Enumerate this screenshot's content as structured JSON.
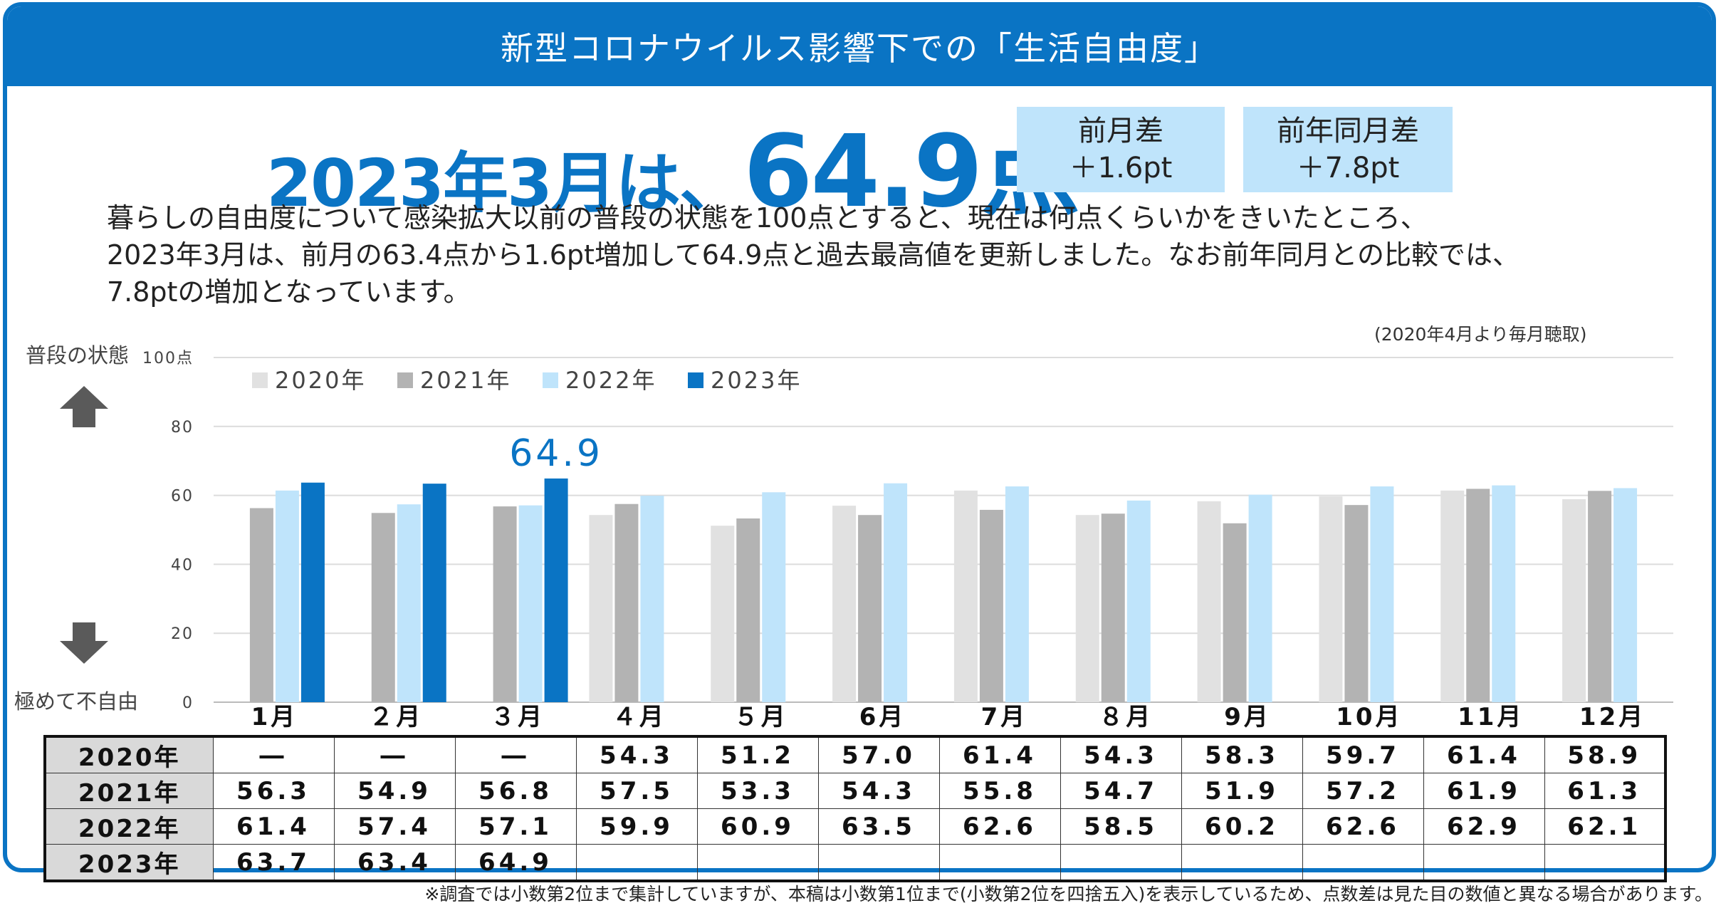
{
  "title": "新型コロナウイルス影響下での「生活自由度」",
  "headline": {
    "prefix": "2023年3月は、",
    "score": "64.9点"
  },
  "diff_month": {
    "label": "前月差",
    "value": "＋1.6pt"
  },
  "diff_year": {
    "label": "前年同月差",
    "value": "＋7.8pt"
  },
  "description": [
    "暮らしの自由度について感染拡大以前の普段の状態を100点とすると、現在は何点くらいかをきいたところ、",
    "2023年3月は、前月の63.4点から1.6pt増加して64.9点と過去最高値を更新しました。なお前年同月との比較では、",
    "7.8ptの増加となっています。"
  ],
  "note_top": "(2020年4月より毎月聴取)",
  "side_top": "普段の状態",
  "side_bottom": "極めて不自由",
  "arrow_up_icon": "arrow-up-icon",
  "arrow_down_icon": "arrow-down-icon",
  "footnote": "※調査では小数第2位まで集計していますが、本稿は小数第1位まで(小数第2位を四捨五入)を表示しているため、点数差は見た目の数値と異なる場合があります。",
  "table_rows": [
    {
      "year": "2020年",
      "cells": [
        "―",
        "―",
        "―",
        "54.3",
        "51.2",
        "57.0",
        "61.4",
        "54.3",
        "58.3",
        "59.7",
        "61.4",
        "58.9"
      ]
    },
    {
      "year": "2021年",
      "cells": [
        "56.3",
        "54.9",
        "56.8",
        "57.5",
        "53.3",
        "54.3",
        "55.8",
        "54.7",
        "51.9",
        "57.2",
        "61.9",
        "61.3"
      ]
    },
    {
      "year": "2022年",
      "cells": [
        "61.4",
        "57.4",
        "57.1",
        "59.9",
        "60.9",
        "63.5",
        "62.6",
        "58.5",
        "60.2",
        "62.6",
        "62.9",
        "62.1"
      ]
    },
    {
      "year": "2023年",
      "cells": [
        "63.7",
        "63.4",
        "64.9",
        "",
        "",
        "",
        "",
        "",
        "",
        "",
        "",
        ""
      ]
    }
  ],
  "chart_data": {
    "type": "bar",
    "categories": [
      "1月",
      "２月",
      "３月",
      "４月",
      "５月",
      "6月",
      "7月",
      "８月",
      "9月",
      "10月",
      "11月",
      "12月"
    ],
    "series": [
      {
        "name": "2020年",
        "color": "#e1e1e1",
        "values": [
          null,
          null,
          null,
          54.3,
          51.2,
          57.0,
          61.4,
          54.3,
          58.3,
          59.7,
          61.4,
          58.9
        ]
      },
      {
        "name": "2021年",
        "color": "#b3b3b3",
        "values": [
          56.3,
          54.9,
          56.8,
          57.5,
          53.3,
          54.3,
          55.8,
          54.7,
          51.9,
          57.2,
          61.9,
          61.3
        ]
      },
      {
        "name": "2022年",
        "color": "#bfe4fb",
        "values": [
          61.4,
          57.4,
          57.1,
          59.9,
          60.9,
          63.5,
          62.6,
          58.5,
          60.2,
          62.6,
          62.9,
          62.1
        ]
      },
      {
        "name": "2023年",
        "color": "#0a74c4",
        "values": [
          63.7,
          63.4,
          64.9,
          null,
          null,
          null,
          null,
          null,
          null,
          null,
          null,
          null
        ]
      }
    ],
    "ylim": [
      0,
      100
    ],
    "yticks": [
      {
        "value": 0,
        "label": "0"
      },
      {
        "value": 20,
        "label": "20"
      },
      {
        "value": 40,
        "label": "40"
      },
      {
        "value": 60,
        "label": "60"
      },
      {
        "value": 80,
        "label": "80"
      },
      {
        "value": 100,
        "label": "100点"
      }
    ],
    "grid": true,
    "legend": "top-left",
    "annotation": {
      "category": "３月",
      "series": "2023年",
      "text": "64.9"
    }
  }
}
